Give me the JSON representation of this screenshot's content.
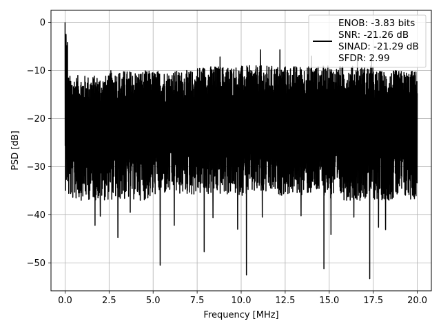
{
  "chart_data": {
    "type": "line",
    "title": "",
    "xlabel": "Frequency [MHz]",
    "ylabel": "PSD [dB]",
    "xlim": [
      -0.8,
      20.8
    ],
    "ylim": [
      -55.8,
      2.5
    ],
    "xticks": [
      0.0,
      2.5,
      5.0,
      7.5,
      10.0,
      12.5,
      15.0,
      17.5,
      20.0
    ],
    "xtick_labels": [
      "0.0",
      "2.5",
      "5.0",
      "7.5",
      "10.0",
      "12.5",
      "15.0",
      "17.5",
      "20.0"
    ],
    "yticks": [
      0,
      -10,
      -20,
      -30,
      -40,
      -50
    ],
    "ytick_labels": [
      "0",
      "−10",
      "−20",
      "−30",
      "−40",
      "−50"
    ],
    "grid": true,
    "legend_position": "top-right",
    "legend_lines": [
      "ENOB: -3.83 bits",
      "SNR: -21.26 dB",
      "SINAD: -21.29 dB",
      "SFDR: 2.99"
    ],
    "series": [
      {
        "color": "#000000",
        "x_range": [
          0.0,
          20.0
        ],
        "envelope_bands": [
          {
            "from": 0.0,
            "to": 0.15,
            "hi": -3,
            "lo": -35
          },
          {
            "from": 0.15,
            "to": 2.5,
            "hi": -11,
            "lo": -37
          },
          {
            "from": 2.5,
            "to": 5.0,
            "hi": -10,
            "lo": -37
          },
          {
            "from": 5.0,
            "to": 7.5,
            "hi": -10,
            "lo": -36
          },
          {
            "from": 7.5,
            "to": 10.0,
            "hi": -9,
            "lo": -36
          },
          {
            "from": 10.0,
            "to": 12.5,
            "hi": -9,
            "lo": -36
          },
          {
            "from": 12.5,
            "to": 15.0,
            "hi": -9,
            "lo": -36
          },
          {
            "from": 15.0,
            "to": 17.5,
            "hi": -9,
            "lo": -37
          },
          {
            "from": 17.5,
            "to": 20.0,
            "hi": -10,
            "lo": -37
          }
        ],
        "peaks": [
          {
            "x": 0.0,
            "y": 0.0
          },
          {
            "x": 0.05,
            "y": -2.5
          },
          {
            "x": 0.1,
            "y": -9.5
          },
          {
            "x": 8.8,
            "y": -7.2
          },
          {
            "x": 11.1,
            "y": -5.7
          },
          {
            "x": 12.2,
            "y": -5.7
          },
          {
            "x": 14.0,
            "y": -7.0
          },
          {
            "x": 16.6,
            "y": -7.2
          },
          {
            "x": 17.4,
            "y": -7.0
          }
        ],
        "dips": [
          {
            "x": 1.7,
            "y": -42.2
          },
          {
            "x": 2.0,
            "y": -40.3
          },
          {
            "x": 3.0,
            "y": -44.7
          },
          {
            "x": 3.7,
            "y": -39.5
          },
          {
            "x": 5.4,
            "y": -50.5
          },
          {
            "x": 6.2,
            "y": -42.2
          },
          {
            "x": 7.9,
            "y": -47.7
          },
          {
            "x": 8.4,
            "y": -40.6
          },
          {
            "x": 9.8,
            "y": -43.0
          },
          {
            "x": 10.3,
            "y": -52.5
          },
          {
            "x": 11.2,
            "y": -40.5
          },
          {
            "x": 13.4,
            "y": -40.2
          },
          {
            "x": 14.7,
            "y": -51.2
          },
          {
            "x": 15.1,
            "y": -44.1
          },
          {
            "x": 16.4,
            "y": -40.5
          },
          {
            "x": 17.3,
            "y": -53.3
          },
          {
            "x": 17.8,
            "y": -42.6
          },
          {
            "x": 18.2,
            "y": -43.1
          }
        ]
      }
    ]
  }
}
